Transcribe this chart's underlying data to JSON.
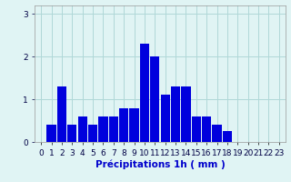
{
  "hours": [
    0,
    1,
    2,
    3,
    4,
    5,
    6,
    7,
    8,
    9,
    10,
    11,
    12,
    13,
    14,
    15,
    16,
    17,
    18,
    19,
    20,
    21,
    22,
    23
  ],
  "values": [
    0.0,
    0.4,
    1.3,
    0.4,
    0.6,
    0.4,
    0.6,
    0.6,
    0.8,
    0.8,
    2.3,
    2.0,
    1.1,
    1.3,
    1.3,
    0.6,
    0.6,
    0.4,
    0.25,
    0.0,
    0.0,
    0.0,
    0.0,
    0.0
  ],
  "bar_color": "#0000dd",
  "background_color": "#e0f4f4",
  "grid_color": "#b0d8d8",
  "xlabel": "Précipitations 1h ( mm )",
  "ylim": [
    0,
    3.2
  ],
  "yticks": [
    0,
    1,
    2,
    3
  ],
  "xlabel_fontsize": 7.5,
  "tick_fontsize": 6.5,
  "xlabel_color": "#0000cc",
  "tick_color": "#000044"
}
